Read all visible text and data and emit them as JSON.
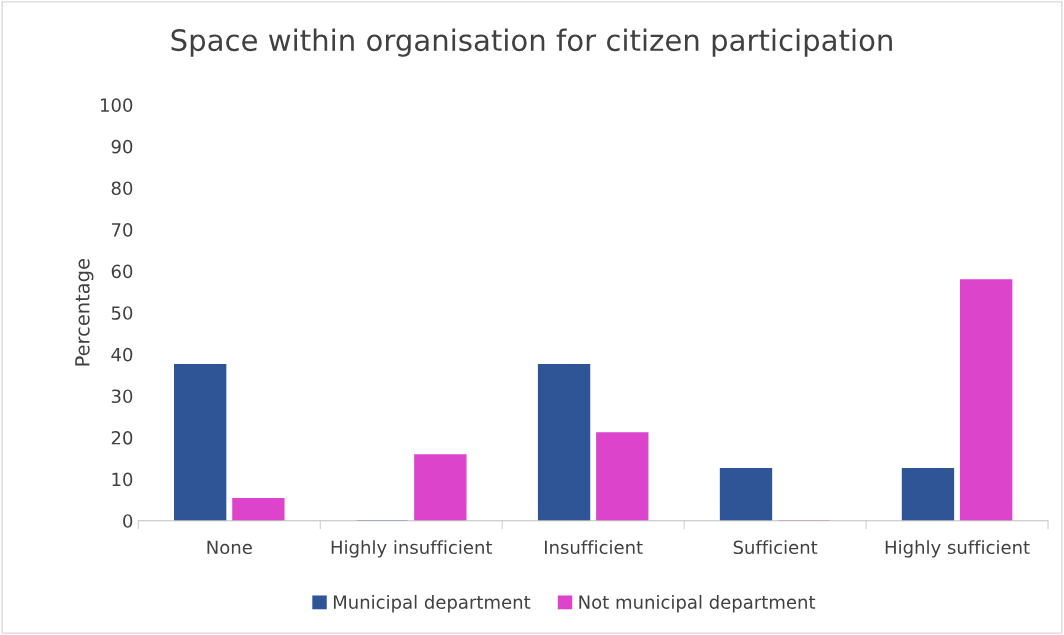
{
  "chart_data": {
    "type": "bar",
    "title": "Space within organisation for citizen participation",
    "ylabel": "Percentage",
    "categories": [
      "None",
      "Highly insufficient",
      "Insufficient",
      "Sufficient",
      "Highly sufficient"
    ],
    "series": [
      {
        "name": "Municipal department",
        "color": "#2f5597",
        "values": [
          37.5,
          0,
          37.5,
          12.5,
          12.5
        ]
      },
      {
        "name": "Not municipal department",
        "color": "#dd44cc",
        "values": [
          5.3,
          15.8,
          21.1,
          0,
          57.9
        ]
      }
    ],
    "ylim": [
      0,
      100
    ],
    "yticks": [
      0,
      10,
      20,
      30,
      40,
      50,
      60,
      70,
      80,
      90,
      100
    ],
    "grid": false,
    "legend": "bottom"
  }
}
